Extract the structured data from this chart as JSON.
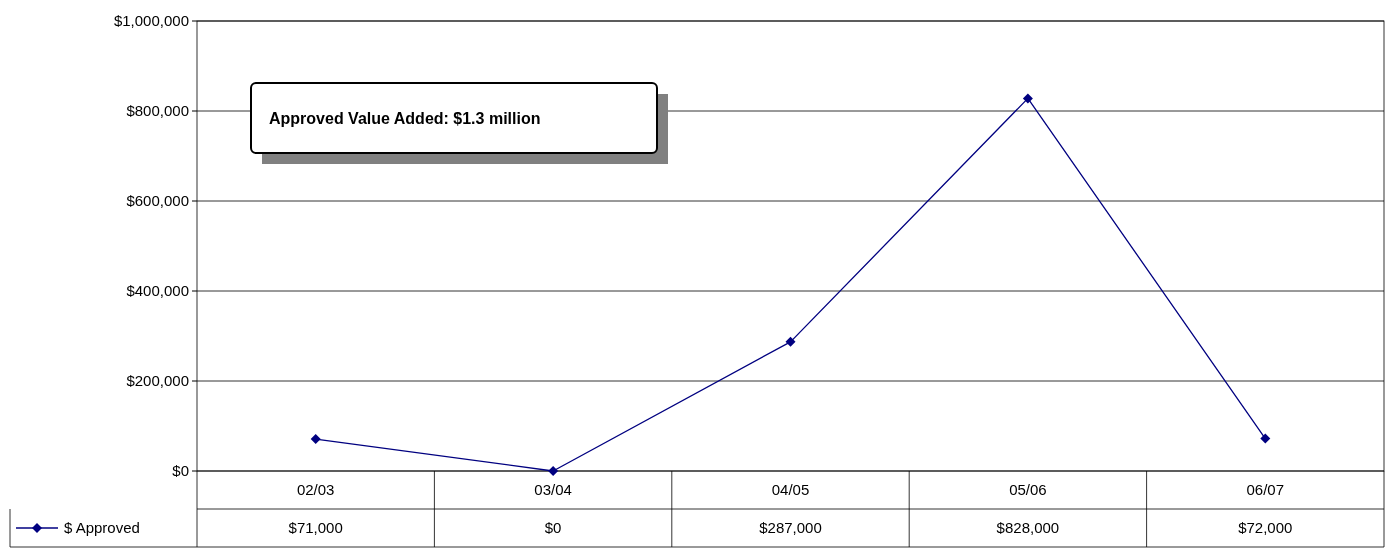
{
  "chart_data": {
    "type": "line",
    "categories": [
      "02/03",
      "03/04",
      "04/05",
      "05/06",
      "06/07"
    ],
    "series": [
      {
        "name": "$ Approved",
        "color": "#000080",
        "values": [
          71000,
          0,
          287000,
          828000,
          72000
        ],
        "value_labels": [
          "$71,000",
          "$0",
          "$287,000",
          "$828,000",
          "$72,000"
        ]
      }
    ],
    "ylim": [
      0,
      1000000
    ],
    "yticks": [
      {
        "value": 0,
        "label": "$0"
      },
      {
        "value": 200000,
        "label": "$200,000"
      },
      {
        "value": 400000,
        "label": "$400,000"
      },
      {
        "value": 600000,
        "label": "$600,000"
      },
      {
        "value": 800000,
        "label": "$800,000"
      },
      {
        "value": 1000000,
        "label": "$1,000,000"
      }
    ],
    "grid": "y",
    "marker": "diamond",
    "line_style": "solid",
    "legend": "bottom left",
    "annotations": [
      "Approved Value Added: $1.3 million"
    ]
  }
}
